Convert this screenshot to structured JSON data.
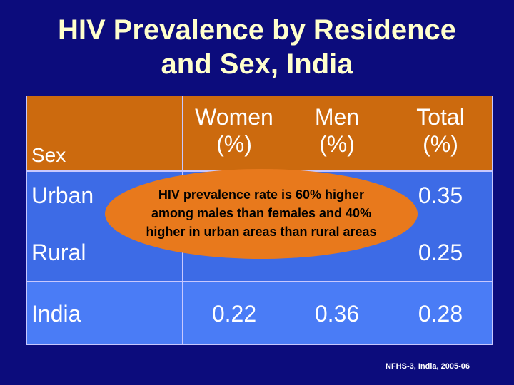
{
  "title_lines": [
    "HIV Prevalence by Residence",
    "and Sex, India"
  ],
  "table": {
    "header": [
      "Sex",
      "Women (%)",
      "Men (%)",
      "Total (%)"
    ],
    "header_lines": {
      "women": [
        "Women",
        "(%)"
      ],
      "men": [
        "Men",
        "(%)"
      ],
      "total": [
        "Total",
        "(%)"
      ]
    },
    "rows": [
      {
        "label": "Urban",
        "total": "0.35"
      },
      {
        "label": "Rural",
        "total": "0.25"
      },
      {
        "label": "India",
        "women": "0.22",
        "men": "0.36",
        "total": "0.28"
      }
    ]
  },
  "callout": [
    "HIV prevalence rate is 60% higher",
    "among males than females and 40%",
    "higher in urban areas than rural areas"
  ],
  "source": "NFHS-3, India, 2005-06"
}
